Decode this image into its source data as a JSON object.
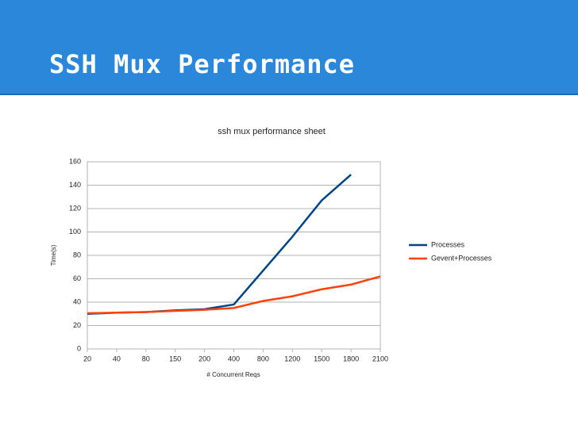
{
  "slide_title": "SSH Mux Performance",
  "chart_data": {
    "type": "line",
    "title": "ssh mux performance sheet",
    "x_label": "# Concurrent Reqs",
    "y_label": "Time(s)",
    "categories": [
      "20",
      "40",
      "80",
      "150",
      "200",
      "400",
      "800",
      "1200",
      "1500",
      "1800",
      "2100"
    ],
    "series": [
      {
        "name": "Processes",
        "color": "#004586",
        "values": [
          30,
          31,
          31.5,
          33,
          34,
          38,
          67,
          96,
          127,
          149,
          null
        ]
      },
      {
        "name": "Gevent+Processes",
        "color": "#ff420e",
        "values": [
          30.5,
          31,
          31.5,
          32.5,
          33.5,
          35,
          41,
          45,
          51,
          55,
          62
        ]
      }
    ],
    "ylim": [
      0,
      160
    ],
    "yticks": [
      0,
      20,
      40,
      60,
      80,
      100,
      120,
      140,
      160
    ],
    "grid": true,
    "legend": "right"
  }
}
